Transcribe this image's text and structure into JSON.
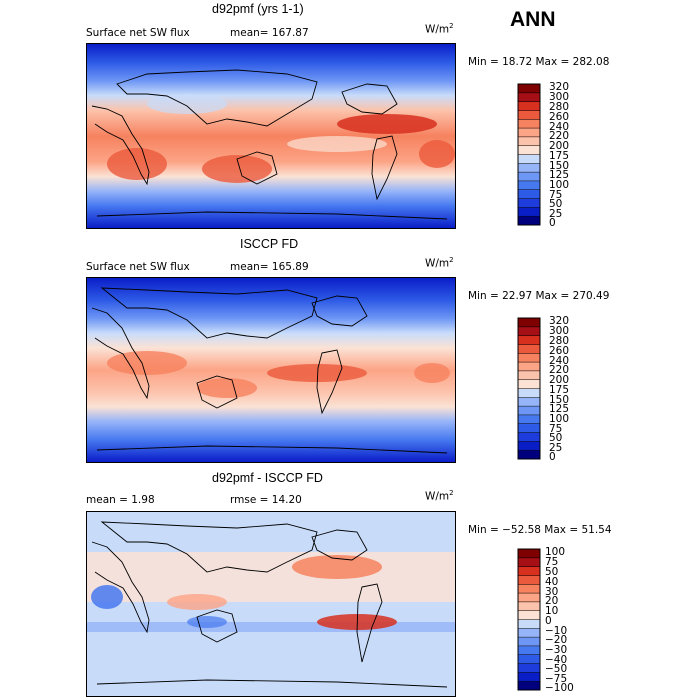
{
  "season_label": "ANN",
  "panels": [
    {
      "title": "d92pmf (yrs 1-1)",
      "left_label": "Surface net SW flux",
      "stat1": "mean= 167.87",
      "stat2": "",
      "units": "W/m",
      "units_sup": "2",
      "minmax": "Min =  18.72 Max = 282.08",
      "colorbar_labels": [
        "320",
        "300",
        "280",
        "260",
        "240",
        "220",
        "200",
        "175",
        "150",
        "125",
        "100",
        "75",
        "50",
        "25",
        "0"
      ]
    },
    {
      "title": "ISCCP FD",
      "left_label": "Surface net SW flux",
      "stat1": "mean= 165.89",
      "stat2": "",
      "units": "W/m",
      "units_sup": "2",
      "minmax": "Min =  22.97 Max = 270.49",
      "colorbar_labels": [
        "320",
        "300",
        "280",
        "260",
        "240",
        "220",
        "200",
        "175",
        "150",
        "125",
        "100",
        "75",
        "50",
        "25",
        "0"
      ]
    },
    {
      "title": "d92pmf - ISCCP FD",
      "left_label": "mean =    1.98",
      "stat1": "",
      "stat2": "rmse =   14.20",
      "units": "W/m",
      "units_sup": "2",
      "minmax": "Min = −52.58 Max =  51.54",
      "colorbar_labels": [
        "100",
        "75",
        "50",
        "40",
        "30",
        "20",
        "10",
        "0",
        "−10",
        "−20",
        "−30",
        "−40",
        "−50",
        "−75",
        "−100"
      ]
    }
  ],
  "chart_data": [
    {
      "type": "heatmap",
      "title": "d92pmf (yrs 1-1)",
      "subtitle": "Surface net SW flux",
      "units": "W/m2",
      "mean": 167.87,
      "min": 18.72,
      "max": 282.08,
      "levels": [
        0,
        25,
        50,
        75,
        100,
        125,
        150,
        175,
        200,
        220,
        240,
        260,
        280,
        300,
        320
      ],
      "colors": [
        "#00007f",
        "#0a1ec8",
        "#1e3cdc",
        "#2d5ae6",
        "#4678f0",
        "#6e96f5",
        "#96b4f8",
        "#c8dcfa",
        "#fbe2d5",
        "#fcc3ac",
        "#fca486",
        "#f6825f",
        "#eb5a3c",
        "#d7301f",
        "#a50f15",
        "#7f0000"
      ]
    },
    {
      "type": "heatmap",
      "title": "ISCCP FD",
      "subtitle": "Surface net SW flux",
      "units": "W/m2",
      "mean": 165.89,
      "min": 22.97,
      "max": 270.49,
      "levels": [
        0,
        25,
        50,
        75,
        100,
        125,
        150,
        175,
        200,
        220,
        240,
        260,
        280,
        300,
        320
      ],
      "colors": [
        "#00007f",
        "#0a1ec8",
        "#1e3cdc",
        "#2d5ae6",
        "#4678f0",
        "#6e96f5",
        "#96b4f8",
        "#c8dcfa",
        "#fbe2d5",
        "#fcc3ac",
        "#fca486",
        "#f6825f",
        "#eb5a3c",
        "#d7301f",
        "#a50f15",
        "#7f0000"
      ]
    },
    {
      "type": "heatmap",
      "title": "d92pmf - ISCCP FD",
      "units": "W/m2",
      "mean": 1.98,
      "rmse": 14.2,
      "min": -52.58,
      "max": 51.54,
      "levels": [
        -100,
        -75,
        -50,
        -40,
        -30,
        -20,
        -10,
        0,
        10,
        20,
        30,
        40,
        50,
        75,
        100
      ],
      "colors": [
        "#00007f",
        "#0a1ec8",
        "#1e3cdc",
        "#2d5ae6",
        "#4678f0",
        "#6e96f5",
        "#96b4f8",
        "#c8dcfa",
        "#fbe2d5",
        "#fcc3ac",
        "#fca486",
        "#f6825f",
        "#eb5a3c",
        "#d7301f",
        "#a50f15",
        "#7f0000"
      ]
    }
  ]
}
